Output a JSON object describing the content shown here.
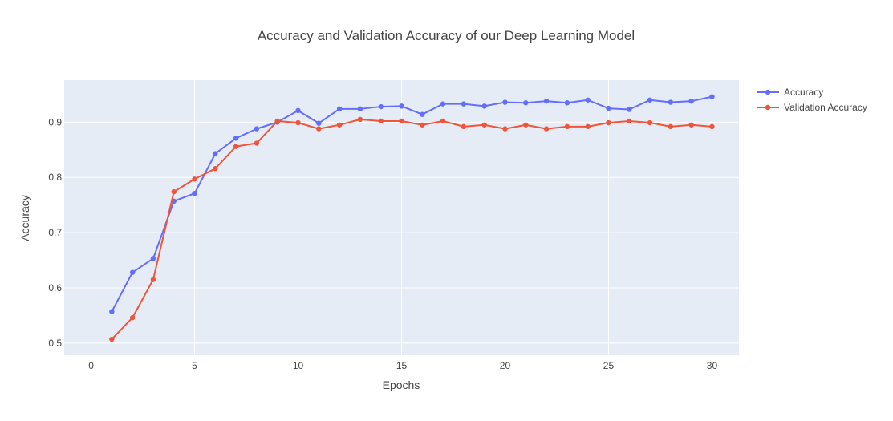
{
  "chart_data": {
    "type": "line",
    "title": "Accuracy and Validation Accuracy of our Deep Learning Model",
    "xlabel": "Epochs",
    "ylabel": "Accuracy",
    "xlim": [
      -1.3,
      31.3
    ],
    "ylim": [
      0.478,
      0.976
    ],
    "xticks": [
      0,
      5,
      10,
      15,
      20,
      25,
      30
    ],
    "yticks": [
      0.5,
      0.6,
      0.7,
      0.8,
      0.9
    ],
    "xtick_labels": [
      "0",
      "5",
      "10",
      "15",
      "20",
      "25",
      "30"
    ],
    "ytick_labels": [
      "0.5",
      "0.6",
      "0.7",
      "0.8",
      "0.9"
    ],
    "grid": true,
    "legend_position": "top-right",
    "x": [
      1,
      2,
      3,
      4,
      5,
      6,
      7,
      8,
      9,
      10,
      11,
      12,
      13,
      14,
      15,
      16,
      17,
      18,
      19,
      20,
      21,
      22,
      23,
      24,
      25,
      26,
      27,
      28,
      29,
      30
    ],
    "series": [
      {
        "name": "Accuracy",
        "color": "#636efa",
        "values": [
          0.557,
          0.628,
          0.653,
          0.757,
          0.771,
          0.843,
          0.871,
          0.888,
          0.9,
          0.921,
          0.898,
          0.924,
          0.924,
          0.928,
          0.929,
          0.914,
          0.933,
          0.933,
          0.929,
          0.936,
          0.935,
          0.938,
          0.935,
          0.94,
          0.925,
          0.923,
          0.94,
          0.936,
          0.938,
          0.946
        ]
      },
      {
        "name": "Validation Accuracy",
        "color": "#ef553b",
        "values": [
          0.507,
          0.546,
          0.615,
          0.774,
          0.797,
          0.816,
          0.856,
          0.862,
          0.902,
          0.899,
          0.888,
          0.895,
          0.905,
          0.902,
          0.902,
          0.895,
          0.902,
          0.892,
          0.895,
          0.888,
          0.895,
          0.888,
          0.892,
          0.892,
          0.899,
          0.902,
          0.899,
          0.892,
          0.895,
          0.892
        ]
      }
    ],
    "colors": {
      "plot_background": "#e5ecf6",
      "grid": "#ffffff",
      "text": "#444444"
    }
  }
}
